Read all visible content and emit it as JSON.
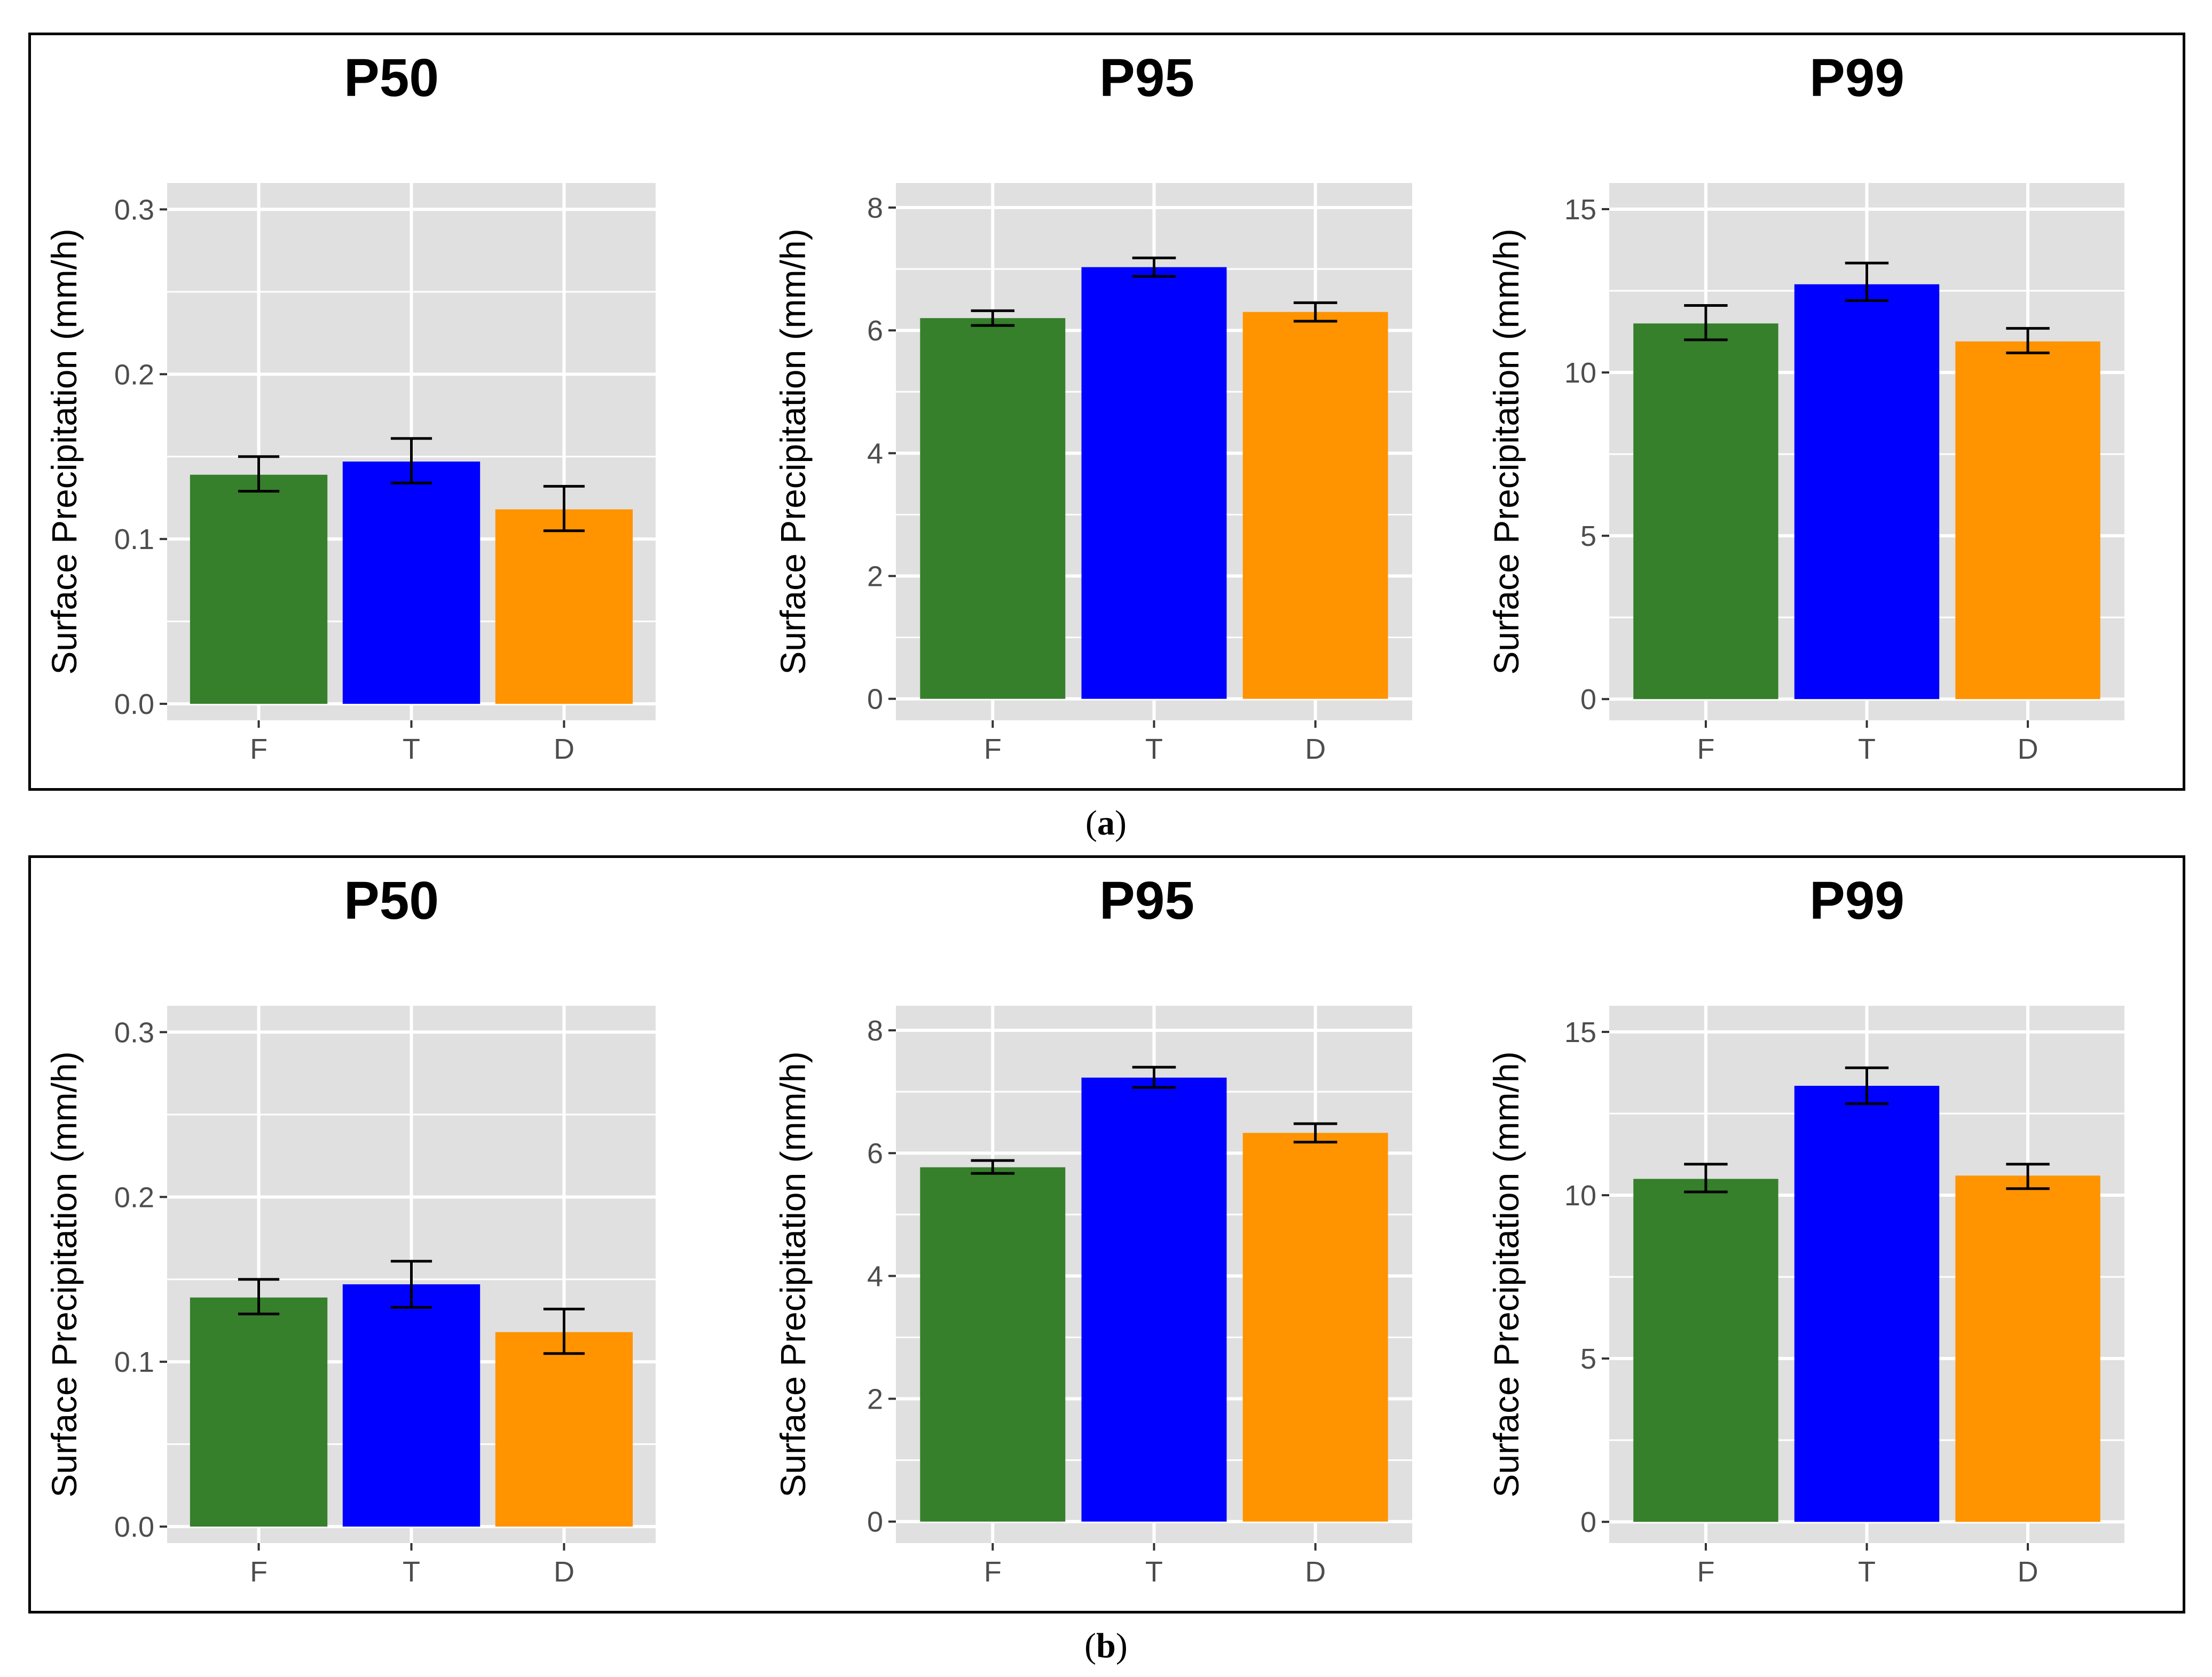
{
  "panels": [
    {
      "id": "a",
      "caption_open": "(",
      "caption_letter": "a",
      "caption_close": ")"
    },
    {
      "id": "b",
      "caption_open": "(",
      "caption_letter": "b",
      "caption_close": ")"
    }
  ],
  "colors": {
    "F": "#367f2b",
    "T": "#0000ff",
    "D": "#ff9300",
    "panel_bg": "#e0e0e0",
    "grid": "#ffffff"
  },
  "chart_data": [
    {
      "panel": "a",
      "type": "bar",
      "title": "P50",
      "ylabel": "Surface Precipitation (mm/h)",
      "categories": [
        "F",
        "T",
        "D"
      ],
      "values": [
        0.139,
        0.147,
        0.118
      ],
      "error_low": [
        0.129,
        0.134,
        0.105
      ],
      "error_high": [
        0.15,
        0.161,
        0.132
      ],
      "ylim": [
        -0.01,
        0.316
      ],
      "yticks": [
        0.0,
        0.1,
        0.2,
        0.3
      ],
      "ytick_labels": [
        "0.0",
        "0.1",
        "0.2",
        "0.3"
      ]
    },
    {
      "panel": "a",
      "type": "bar",
      "title": "P95",
      "ylabel": "Surface Precipitation (mm/h)",
      "categories": [
        "F",
        "T",
        "D"
      ],
      "values": [
        6.2,
        7.03,
        6.3
      ],
      "error_low": [
        6.08,
        6.88,
        6.15
      ],
      "error_high": [
        6.32,
        7.18,
        6.45
      ],
      "ylim": [
        -0.35,
        8.4
      ],
      "yticks": [
        0,
        2,
        4,
        6,
        8
      ],
      "ytick_labels": [
        "0",
        "2",
        "4",
        "6",
        "8"
      ]
    },
    {
      "panel": "a",
      "type": "bar",
      "title": "P99",
      "ylabel": "Surface Precipitation (mm/h)",
      "categories": [
        "F",
        "T",
        "D"
      ],
      "values": [
        11.5,
        12.7,
        10.95
      ],
      "error_low": [
        11.0,
        12.2,
        10.6
      ],
      "error_high": [
        12.05,
        13.35,
        11.35
      ],
      "ylim": [
        -0.65,
        15.8
      ],
      "yticks": [
        0,
        5,
        10,
        15
      ],
      "ytick_labels": [
        "0",
        "5",
        "10",
        "15"
      ]
    },
    {
      "panel": "b",
      "type": "bar",
      "title": "P50",
      "ylabel": "Surface Precipitation (mm/h)",
      "categories": [
        "F",
        "T",
        "D"
      ],
      "values": [
        0.139,
        0.147,
        0.118
      ],
      "error_low": [
        0.129,
        0.133,
        0.105
      ],
      "error_high": [
        0.15,
        0.161,
        0.132
      ],
      "ylim": [
        -0.01,
        0.316
      ],
      "yticks": [
        0.0,
        0.1,
        0.2,
        0.3
      ],
      "ytick_labels": [
        "0.0",
        "0.1",
        "0.2",
        "0.3"
      ]
    },
    {
      "panel": "b",
      "type": "bar",
      "title": "P95",
      "ylabel": "Surface Precipitation (mm/h)",
      "categories": [
        "F",
        "T",
        "D"
      ],
      "values": [
        5.77,
        7.23,
        6.33
      ],
      "error_low": [
        5.67,
        7.07,
        6.18
      ],
      "error_high": [
        5.88,
        7.4,
        6.48
      ],
      "ylim": [
        -0.35,
        8.4
      ],
      "yticks": [
        0,
        2,
        4,
        6,
        8
      ],
      "ytick_labels": [
        "0",
        "2",
        "4",
        "6",
        "8"
      ]
    },
    {
      "panel": "b",
      "type": "bar",
      "title": "P99",
      "ylabel": "Surface Precipitation (mm/h)",
      "categories": [
        "F",
        "T",
        "D"
      ],
      "values": [
        10.5,
        13.35,
        10.6
      ],
      "error_low": [
        10.1,
        12.8,
        10.2
      ],
      "error_high": [
        10.95,
        13.9,
        10.95
      ],
      "ylim": [
        -0.65,
        15.8
      ],
      "yticks": [
        0,
        5,
        10,
        15
      ],
      "ytick_labels": [
        "0",
        "5",
        "10",
        "15"
      ]
    }
  ]
}
